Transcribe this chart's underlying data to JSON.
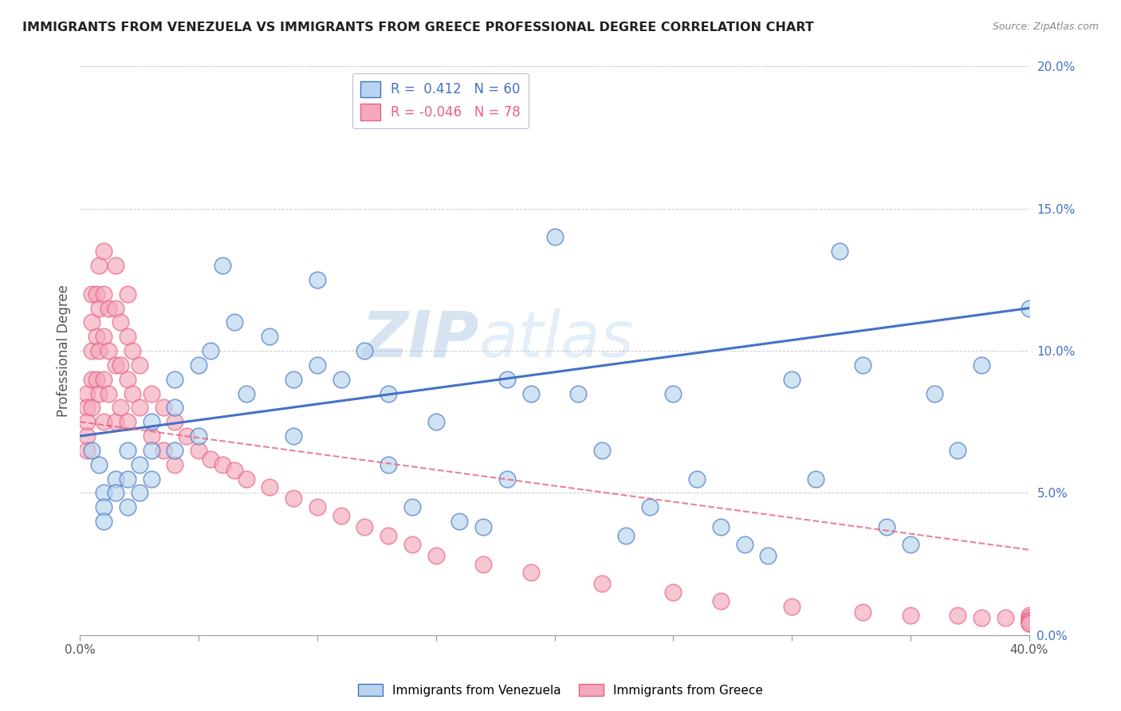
{
  "title": "IMMIGRANTS FROM VENEZUELA VS IMMIGRANTS FROM GREECE PROFESSIONAL DEGREE CORRELATION CHART",
  "source": "Source: ZipAtlas.com",
  "xlabel": "",
  "ylabel": "Professional Degree",
  "watermark": "ZIPatlas",
  "xlim": [
    0.0,
    0.4
  ],
  "ylim": [
    0.0,
    0.2
  ],
  "xticks": [
    0.0,
    0.05,
    0.1,
    0.15,
    0.2,
    0.25,
    0.3,
    0.35,
    0.4
  ],
  "yticks": [
    0.0,
    0.05,
    0.1,
    0.15,
    0.2
  ],
  "xtick_labels": [
    "0.0%",
    "",
    "",
    "",
    "",
    "",
    "",
    "",
    "40.0%"
  ],
  "ytick_labels_right": [
    "0.0%",
    "5.0%",
    "10.0%",
    "15.0%",
    "20.0%"
  ],
  "legend1_label": "R =  0.412   N = 60",
  "legend2_label": "R = -0.046   N = 78",
  "series1_color": "#b8d4ee",
  "series2_color": "#f4a8bc",
  "line1_color": "#4472c4",
  "line2_color": "#e86080",
  "venezuela_x": [
    0.005,
    0.008,
    0.01,
    0.01,
    0.01,
    0.015,
    0.015,
    0.02,
    0.02,
    0.02,
    0.025,
    0.025,
    0.03,
    0.03,
    0.03,
    0.04,
    0.04,
    0.04,
    0.05,
    0.05,
    0.055,
    0.06,
    0.065,
    0.07,
    0.08,
    0.09,
    0.09,
    0.1,
    0.1,
    0.11,
    0.12,
    0.13,
    0.13,
    0.14,
    0.15,
    0.16,
    0.17,
    0.18,
    0.18,
    0.19,
    0.2,
    0.21,
    0.22,
    0.23,
    0.24,
    0.25,
    0.26,
    0.27,
    0.28,
    0.29,
    0.3,
    0.31,
    0.32,
    0.33,
    0.34,
    0.35,
    0.36,
    0.37,
    0.38,
    0.4
  ],
  "venezuela_y": [
    0.065,
    0.06,
    0.05,
    0.045,
    0.04,
    0.055,
    0.05,
    0.065,
    0.055,
    0.045,
    0.06,
    0.05,
    0.075,
    0.065,
    0.055,
    0.09,
    0.08,
    0.065,
    0.095,
    0.07,
    0.1,
    0.13,
    0.11,
    0.085,
    0.105,
    0.09,
    0.07,
    0.125,
    0.095,
    0.09,
    0.1,
    0.085,
    0.06,
    0.045,
    0.075,
    0.04,
    0.038,
    0.09,
    0.055,
    0.085,
    0.14,
    0.085,
    0.065,
    0.035,
    0.045,
    0.085,
    0.055,
    0.038,
    0.032,
    0.028,
    0.09,
    0.055,
    0.135,
    0.095,
    0.038,
    0.032,
    0.085,
    0.065,
    0.095,
    0.115
  ],
  "greece_x": [
    0.003,
    0.003,
    0.003,
    0.003,
    0.003,
    0.005,
    0.005,
    0.005,
    0.005,
    0.005,
    0.007,
    0.007,
    0.007,
    0.008,
    0.008,
    0.008,
    0.008,
    0.01,
    0.01,
    0.01,
    0.01,
    0.01,
    0.012,
    0.012,
    0.012,
    0.015,
    0.015,
    0.015,
    0.015,
    0.017,
    0.017,
    0.017,
    0.02,
    0.02,
    0.02,
    0.02,
    0.022,
    0.022,
    0.025,
    0.025,
    0.03,
    0.03,
    0.035,
    0.035,
    0.04,
    0.04,
    0.045,
    0.05,
    0.055,
    0.06,
    0.065,
    0.07,
    0.08,
    0.09,
    0.1,
    0.11,
    0.12,
    0.13,
    0.14,
    0.15,
    0.17,
    0.19,
    0.22,
    0.25,
    0.27,
    0.3,
    0.33,
    0.35,
    0.37,
    0.38,
    0.39,
    0.4,
    0.4,
    0.4,
    0.4,
    0.4,
    0.4,
    0.4
  ],
  "greece_y": [
    0.085,
    0.08,
    0.075,
    0.07,
    0.065,
    0.12,
    0.11,
    0.1,
    0.09,
    0.08,
    0.12,
    0.105,
    0.09,
    0.13,
    0.115,
    0.1,
    0.085,
    0.135,
    0.12,
    0.105,
    0.09,
    0.075,
    0.115,
    0.1,
    0.085,
    0.13,
    0.115,
    0.095,
    0.075,
    0.11,
    0.095,
    0.08,
    0.12,
    0.105,
    0.09,
    0.075,
    0.1,
    0.085,
    0.095,
    0.08,
    0.085,
    0.07,
    0.08,
    0.065,
    0.075,
    0.06,
    0.07,
    0.065,
    0.062,
    0.06,
    0.058,
    0.055,
    0.052,
    0.048,
    0.045,
    0.042,
    0.038,
    0.035,
    0.032,
    0.028,
    0.025,
    0.022,
    0.018,
    0.015,
    0.012,
    0.01,
    0.008,
    0.007,
    0.007,
    0.006,
    0.006,
    0.007,
    0.006,
    0.005,
    0.005,
    0.005,
    0.004,
    0.004
  ],
  "trendline1_x0": 0.0,
  "trendline1_y0": 0.07,
  "trendline1_x1": 0.4,
  "trendline1_y1": 0.115,
  "trendline2_x0": 0.0,
  "trendline2_y0": 0.075,
  "trendline2_x1": 0.4,
  "trendline2_y1": 0.03
}
